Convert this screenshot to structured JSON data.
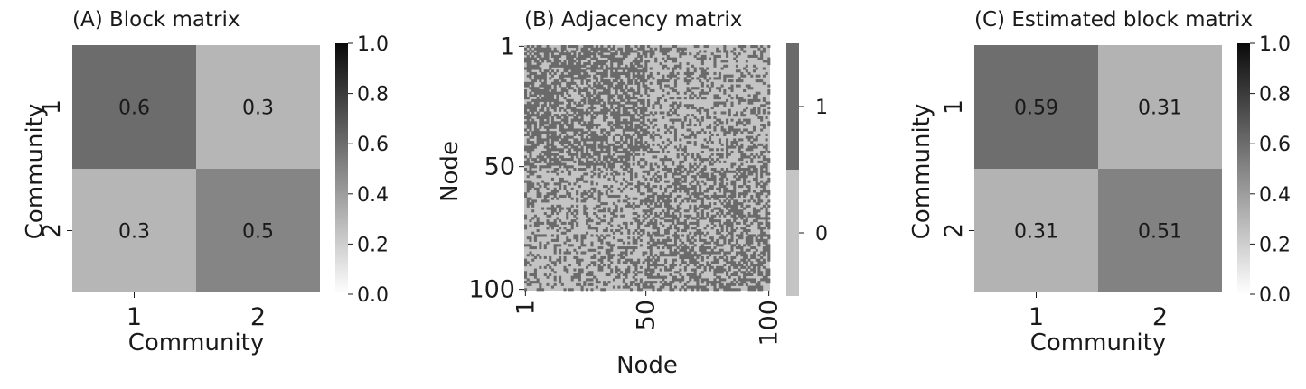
{
  "chart_data": [
    {
      "type": "heatmap",
      "title": "(A) Block matrix",
      "xlabel": "Community",
      "ylabel": "Community",
      "x_ticks": [
        "1",
        "2"
      ],
      "y_ticks": [
        "1",
        "2"
      ],
      "values": [
        [
          0.6,
          0.3
        ],
        [
          0.3,
          0.5
        ]
      ],
      "cell_labels": [
        [
          "0.6",
          "0.3"
        ],
        [
          "0.3",
          "0.5"
        ]
      ],
      "colorbar": {
        "range": [
          0.0,
          1.0
        ],
        "ticks": [
          "0.0",
          "0.2",
          "0.4",
          "0.6",
          "0.8",
          "1.0"
        ]
      },
      "colormap": "Greys"
    },
    {
      "type": "heatmap",
      "title": "(B) Adjacency matrix",
      "xlabel": "Node",
      "ylabel": "Node",
      "x_ticks": [
        "1",
        "50",
        "100"
      ],
      "y_ticks": [
        "1",
        "50",
        "100"
      ],
      "n_nodes": 100,
      "communities": [
        {
          "nodes": [
            1,
            50
          ],
          "within_prob": 0.6
        },
        {
          "nodes": [
            51,
            100
          ],
          "within_prob": 0.5
        }
      ],
      "between_prob": 0.3,
      "values": "binary 0/1 random adjacency (sampled)",
      "colorbar": {
        "categories": [
          "0",
          "1"
        ],
        "colors": [
          "#c4c4c4",
          "#6a6a6a"
        ]
      }
    },
    {
      "type": "heatmap",
      "title": "(C) Estimated block matrix",
      "xlabel": "Community",
      "ylabel": "Community",
      "x_ticks": [
        "1",
        "2"
      ],
      "y_ticks": [
        "1",
        "2"
      ],
      "values": [
        [
          0.59,
          0.31
        ],
        [
          0.31,
          0.51
        ]
      ],
      "cell_labels": [
        [
          "0.59",
          "0.31"
        ],
        [
          "0.31",
          "0.51"
        ]
      ],
      "colorbar": {
        "range": [
          0.0,
          1.0
        ],
        "ticks": [
          "0.0",
          "0.2",
          "0.4",
          "0.6",
          "0.8",
          "1.0"
        ]
      },
      "colormap": "Greys"
    }
  ]
}
